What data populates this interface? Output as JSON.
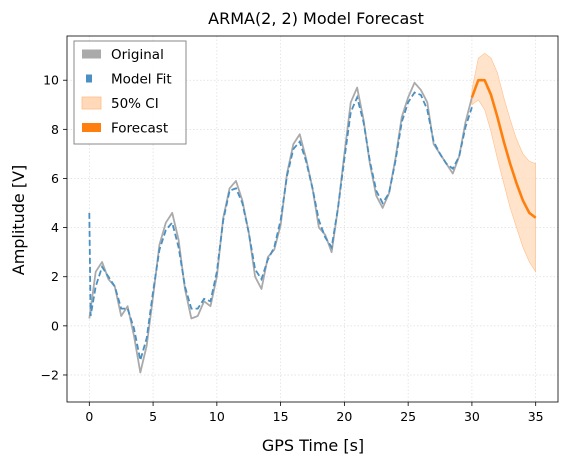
{
  "chart_data": {
    "type": "line",
    "title": "ARMA(2, 2) Model Forecast",
    "xlabel": "GPS Time [s]",
    "ylabel": "Amplitude [V]",
    "xlim": [
      -1.75,
      36.75
    ],
    "ylim": [
      -3.1,
      11.8
    ],
    "xticks": [
      0,
      5,
      10,
      15,
      20,
      25,
      30,
      35
    ],
    "yticks": [
      -2,
      0,
      2,
      4,
      6,
      8,
      10
    ],
    "ytick_labels": [
      "−2",
      "0",
      "2",
      "4",
      "6",
      "8",
      "10"
    ],
    "grid": true,
    "legend_position": "top-left",
    "legend": [
      {
        "label": "Original",
        "color": "#aaaaaa",
        "kind": "line"
      },
      {
        "label": "Model Fit",
        "color": "#4a90c2",
        "kind": "dashed"
      },
      {
        "label": "50% CI",
        "color": "#ffd9b8",
        "kind": "band"
      },
      {
        "label": "Forecast",
        "color": "#ff7f0e",
        "kind": "line"
      }
    ],
    "series": [
      {
        "name": "Original",
        "color": "#aaaaaa",
        "style": "solid",
        "x": [
          0,
          0.5,
          1,
          1.5,
          2,
          2.5,
          3,
          3.5,
          4,
          4.5,
          5,
          5.5,
          6,
          6.5,
          7,
          7.5,
          8,
          8.5,
          9,
          9.5,
          10,
          10.5,
          11,
          11.5,
          12,
          12.5,
          13,
          13.5,
          14,
          14.5,
          15,
          15.5,
          16,
          16.5,
          17,
          17.5,
          18,
          18.5,
          19,
          19.5,
          20,
          20.5,
          21,
          21.5,
          22,
          22.5,
          23,
          23.5,
          24,
          24.5,
          25,
          25.5,
          26,
          26.5,
          27,
          27.5,
          28,
          28.5,
          29,
          29.5,
          30
        ],
        "values": [
          0.3,
          2.2,
          2.6,
          1.9,
          1.6,
          0.4,
          0.8,
          -0.4,
          -1.9,
          -0.8,
          1.2,
          3.3,
          4.2,
          4.6,
          3.5,
          1.5,
          0.3,
          0.4,
          1.0,
          0.8,
          2.0,
          4.4,
          5.6,
          5.9,
          5.1,
          3.8,
          2.0,
          1.5,
          2.8,
          3.1,
          4.1,
          6.2,
          7.4,
          7.8,
          6.8,
          5.6,
          4.0,
          3.7,
          3.0,
          4.8,
          7.0,
          9.1,
          9.7,
          8.4,
          6.6,
          5.3,
          4.8,
          5.4,
          6.8,
          8.5,
          9.3,
          9.9,
          9.6,
          9.1,
          7.4,
          7.0,
          6.6,
          6.2,
          6.9,
          8.3,
          9.3
        ]
      },
      {
        "name": "Model Fit",
        "color": "#4a90c2",
        "style": "dashed",
        "x": [
          0,
          0.1,
          0.5,
          1,
          1.5,
          2,
          2.5,
          3,
          3.5,
          4,
          4.5,
          5,
          5.5,
          6,
          6.5,
          7,
          7.5,
          8,
          8.5,
          9,
          9.5,
          10,
          10.5,
          11,
          11.5,
          12,
          12.5,
          13,
          13.5,
          14,
          14.5,
          15,
          15.5,
          16,
          16.5,
          17,
          17.5,
          18,
          18.5,
          19,
          19.5,
          20,
          20.5,
          21,
          21.5,
          22,
          22.5,
          23,
          23.5,
          24,
          24.5,
          25,
          25.5,
          26,
          26.5,
          27,
          27.5,
          28,
          28.5,
          29,
          29.5,
          30
        ],
        "values": [
          4.6,
          0.4,
          1.6,
          2.4,
          2.0,
          1.6,
          0.7,
          0.7,
          -0.1,
          -1.4,
          -0.5,
          1.4,
          3.1,
          3.9,
          4.2,
          3.2,
          1.6,
          0.7,
          0.7,
          1.1,
          1.0,
          2.2,
          4.3,
          5.5,
          5.6,
          5.0,
          3.8,
          2.3,
          1.9,
          2.7,
          3.2,
          4.3,
          6.1,
          7.2,
          7.5,
          6.7,
          5.6,
          4.3,
          3.6,
          3.2,
          4.8,
          6.8,
          8.7,
          9.3,
          8.3,
          6.7,
          5.5,
          5.0,
          5.4,
          6.7,
          8.3,
          9.1,
          9.5,
          9.4,
          8.8,
          7.5,
          7.0,
          6.6,
          6.4,
          6.9,
          8.1,
          8.9
        ]
      },
      {
        "name": "Forecast",
        "color": "#ff7f0e",
        "style": "solid",
        "x": [
          30,
          30.5,
          31,
          31.5,
          32,
          32.5,
          33,
          33.5,
          34,
          34.5,
          35
        ],
        "values": [
          9.3,
          10.0,
          10.0,
          9.4,
          8.5,
          7.5,
          6.6,
          5.8,
          5.1,
          4.6,
          4.4
        ],
        "ci_lower": [
          9.0,
          9.2,
          8.8,
          7.9,
          6.8,
          5.8,
          4.8,
          4.0,
          3.2,
          2.6,
          2.2
        ],
        "ci_upper": [
          9.6,
          10.9,
          11.1,
          10.9,
          10.3,
          9.3,
          8.4,
          7.6,
          7.0,
          6.7,
          6.6
        ]
      }
    ]
  }
}
